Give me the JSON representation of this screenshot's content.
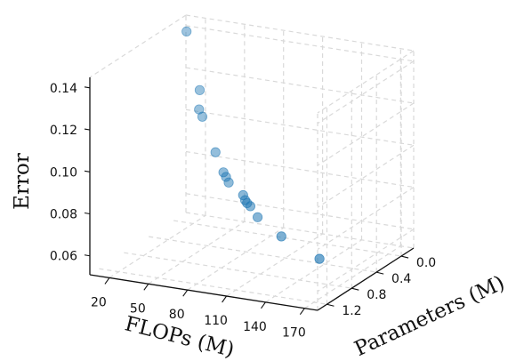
{
  "chart_data": {
    "type": "scatter",
    "projection": "3d",
    "title": "",
    "xlabel": "FLOPs (M)",
    "ylabel": "Parameters (M)",
    "zlabel": "Error",
    "xticks": [
      "20",
      "50",
      "80",
      "110",
      "140",
      "170"
    ],
    "yticks": [
      "0.0",
      "0.4",
      "0.8",
      "1.2"
    ],
    "zticks": [
      "0.06",
      "0.08",
      "0.10",
      "0.12",
      "0.14"
    ],
    "xlim": [
      5,
      180
    ],
    "ylim": [
      -0.2,
      1.35
    ],
    "zlim": [
      0.051,
      0.145
    ],
    "grid": true,
    "marker_color": "#1f77b4",
    "x": [
      15,
      27,
      27,
      30,
      42,
      50,
      52,
      55,
      68,
      70,
      72,
      75,
      82,
      105,
      140
    ],
    "y": [
      0.0,
      0.04,
      0.05,
      0.06,
      0.1,
      0.14,
      0.14,
      0.16,
      0.2,
      0.21,
      0.22,
      0.23,
      0.26,
      0.36,
      0.48
    ],
    "z": [
      0.142,
      0.116,
      0.107,
      0.104,
      0.089,
      0.081,
      0.079,
      0.077,
      0.073,
      0.071,
      0.07,
      0.069,
      0.065,
      0.06,
      0.055
    ]
  }
}
